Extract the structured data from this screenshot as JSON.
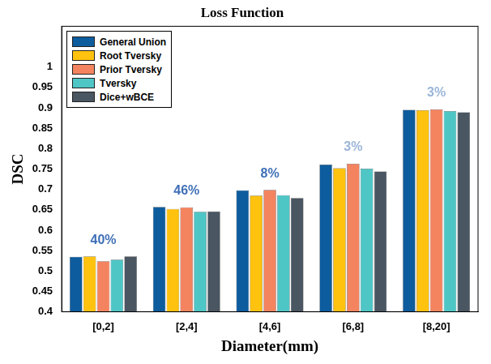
{
  "chart_data": {
    "type": "bar",
    "title": "Loss Function",
    "x_label": "Diameter(mm)",
    "y_label": "DSC",
    "categories": [
      "[0,2]",
      "[2,4]",
      "[4,6]",
      "[6,8]",
      "[8,20]"
    ],
    "series": [
      {
        "name": "General Union",
        "color": "#0d5c9e",
        "values": [
          0.535,
          0.657,
          0.698,
          0.761,
          0.895
        ]
      },
      {
        "name": "Root Tversky",
        "color": "#ffc20e",
        "values": [
          0.536,
          0.652,
          0.685,
          0.752,
          0.894
        ]
      },
      {
        "name": "Prior Tversky",
        "color": "#f4845f",
        "values": [
          0.524,
          0.656,
          0.699,
          0.763,
          0.896
        ]
      },
      {
        "name": "Tversky",
        "color": "#4fc6c6",
        "values": [
          0.528,
          0.645,
          0.686,
          0.751,
          0.892
        ]
      },
      {
        "name": "Dice+wBCE",
        "color": "#4a5662",
        "values": [
          0.536,
          0.646,
          0.679,
          0.744,
          0.889
        ]
      }
    ],
    "ylim": [
      0.4,
      1.1
    ],
    "yticks": [
      0.4,
      0.45,
      0.5,
      0.55,
      0.6,
      0.65,
      0.7,
      0.75,
      0.8,
      0.85,
      0.9,
      0.95,
      1
    ],
    "grid": false,
    "legend": "upper left",
    "annotations": [
      {
        "category": "[0,2]",
        "text": "40%",
        "color": "#3f6fb6"
      },
      {
        "category": "[2,4]",
        "text": "46%",
        "color": "#3f6fb6"
      },
      {
        "category": "[4,6]",
        "text": "8%",
        "color": "#3f6fb6"
      },
      {
        "category": "[6,8]",
        "text": "3%",
        "color": "#9bb5d9"
      },
      {
        "category": "[8,20]",
        "text": "3%",
        "color": "#9bb5d9"
      }
    ]
  }
}
